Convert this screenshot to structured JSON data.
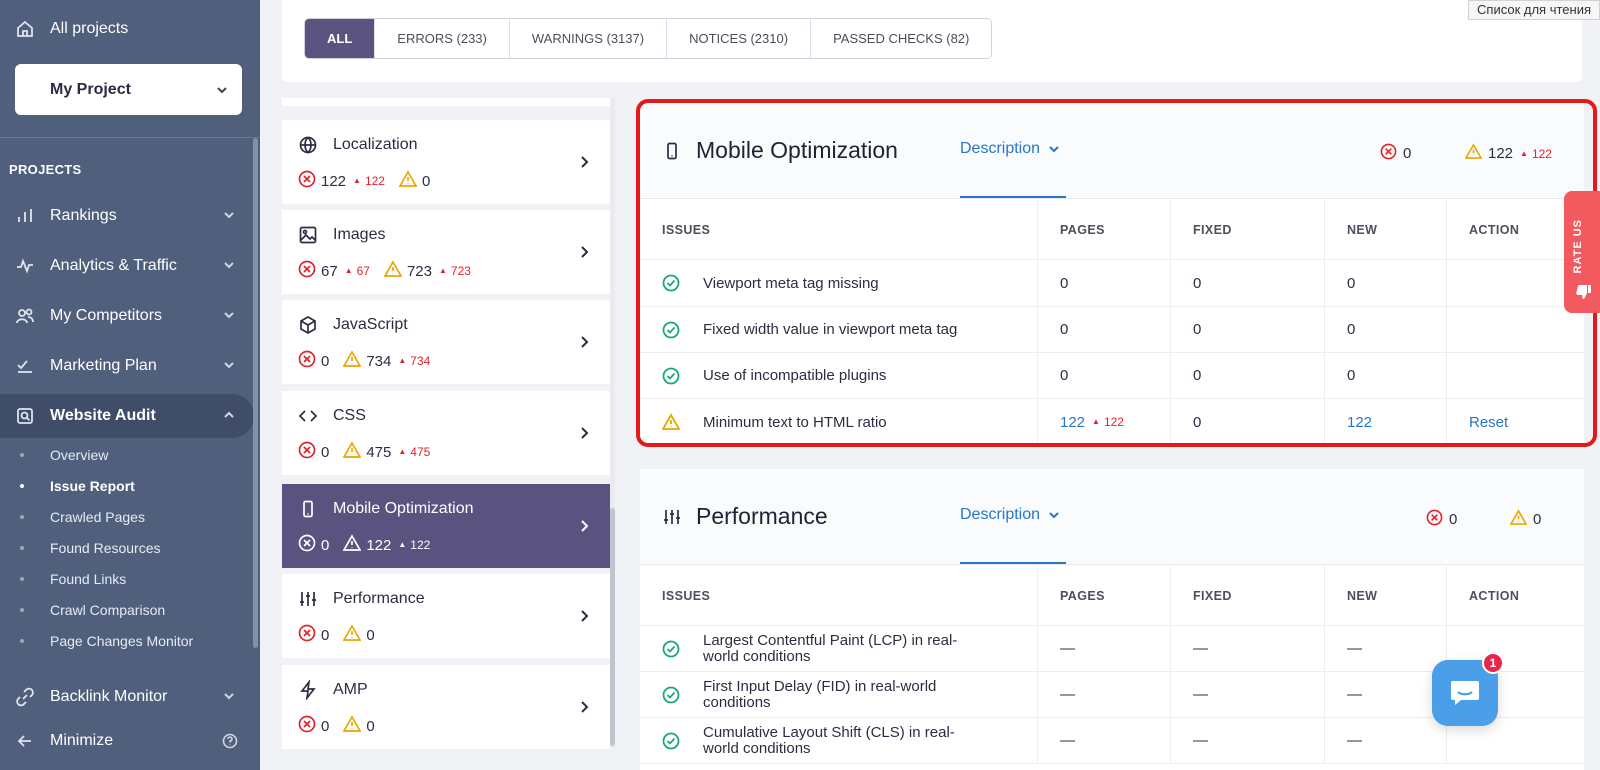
{
  "sidebar": {
    "all_projects": "All projects",
    "project": "My Project",
    "section": "PROJECTS",
    "nav": [
      {
        "label": "Rankings",
        "icon": "bar-chart-icon"
      },
      {
        "label": "Analytics & Traffic",
        "icon": "pulse-icon"
      },
      {
        "label": "My Competitors",
        "icon": "users-icon"
      },
      {
        "label": "Marketing Plan",
        "icon": "checklist-icon"
      },
      {
        "label": "Website Audit",
        "icon": "audit-icon"
      }
    ],
    "audit_items": [
      "Overview",
      "Issue Report",
      "Crawled Pages",
      "Found Resources",
      "Found Links",
      "Crawl Comparison",
      "Page Changes Monitor"
    ],
    "backlink": "Backlink Monitor",
    "minimize": "Minimize"
  },
  "filters": {
    "tabs": [
      "ALL",
      "ERRORS (233)",
      "WARNINGS (3137)",
      "NOTICES (2310)",
      "PASSED CHECKS (82)"
    ],
    "active": "ALL"
  },
  "browser_tooltip": "Список для чтения",
  "categories": [
    {
      "name": "Localization",
      "errors": "122",
      "errors_new": "122",
      "warnings": "0",
      "warnings_new": ""
    },
    {
      "name": "Images",
      "errors": "67",
      "errors_new": "67",
      "warnings": "723",
      "warnings_new": "723"
    },
    {
      "name": "JavaScript",
      "errors": "0",
      "errors_new": "",
      "warnings": "734",
      "warnings_new": "734"
    },
    {
      "name": "CSS",
      "errors": "0",
      "errors_new": "",
      "warnings": "475",
      "warnings_new": "475"
    },
    {
      "name": "Mobile Optimization",
      "errors": "0",
      "errors_new": "",
      "warnings": "122",
      "warnings_new": "122"
    },
    {
      "name": "Performance",
      "errors": "0",
      "errors_new": "",
      "warnings": "0",
      "warnings_new": ""
    },
    {
      "name": "AMP",
      "errors": "0",
      "errors_new": "",
      "warnings": "0",
      "warnings_new": ""
    }
  ],
  "columns": [
    "ISSUES",
    "PAGES",
    "FIXED",
    "NEW",
    "ACTION"
  ],
  "mobile_panel": {
    "title": "Mobile Optimization",
    "description": "Description",
    "errors": "0",
    "warnings": "122",
    "warnings_new": "122",
    "rows": [
      {
        "issue": "Viewport meta tag missing",
        "pages": "0",
        "pages_new": "",
        "fixed": "0",
        "new": "0",
        "action": "",
        "status": "ok"
      },
      {
        "issue": "Fixed width value in viewport meta tag",
        "pages": "0",
        "pages_new": "",
        "fixed": "0",
        "new": "0",
        "action": "",
        "status": "ok"
      },
      {
        "issue": "Use of incompatible plugins",
        "pages": "0",
        "pages_new": "",
        "fixed": "0",
        "new": "0",
        "action": "",
        "status": "ok"
      },
      {
        "issue": "Minimum text to HTML ratio",
        "pages": "122",
        "pages_new": "122",
        "fixed": "0",
        "new": "122",
        "action": "Reset",
        "status": "warning"
      }
    ]
  },
  "performance_panel": {
    "title": "Performance",
    "description": "Description",
    "errors": "0",
    "warnings": "0",
    "rows": [
      {
        "issue": "Largest Contentful Paint (LCP) in real-world conditions",
        "pages": "—",
        "fixed": "—",
        "new": "—"
      },
      {
        "issue": "First Input Delay (FID) in real-world conditions",
        "pages": "—",
        "fixed": "—",
        "new": "—"
      },
      {
        "issue": "Cumulative Layout Shift (CLS) in real-world conditions",
        "pages": "—",
        "fixed": "—",
        "new": "—"
      }
    ]
  },
  "rate_us": "RATE US",
  "chat_badge": "1",
  "colors": {
    "sidebar": "#4f5f7c",
    "accent": "#5b537f",
    "error": "#e0242b",
    "warning": "#e8a800",
    "ok": "#19a974",
    "link": "#2677c9",
    "highlight": "#e5191b"
  }
}
